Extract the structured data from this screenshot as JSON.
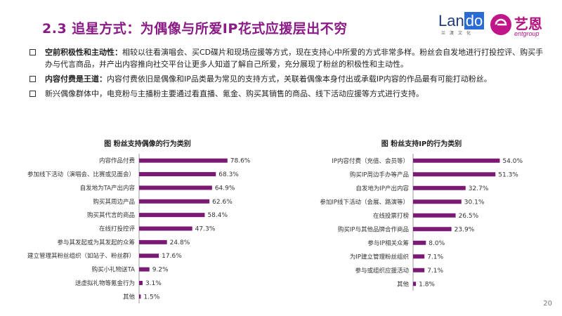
{
  "header": {
    "title": "2.3 追星方式：为偶像与所爱IP花式应援层出不穷",
    "logo_lando": {
      "text_pre": "Lan",
      "text_highlight": "do",
      "sub": "兰渡文化"
    },
    "logo_yien": {
      "cn": "艺恩",
      "en": "entgroup"
    }
  },
  "bullets": [
    {
      "bold": "空前积极性和主动性：",
      "text": "相较以往看演唱会、买CD碟片和现场应援等方式，现在支持心中所爱的方式非常多样。粉丝会自发地进行打投控评、购买手办与代言商品，并产出内容推向社交平台让更多人知道了解自己所爱，充分展现了粉丝的积极性和主动性。"
    },
    {
      "bold": "内容付费是王道：",
      "text": "内容付费依旧是偶像和IP品类最为常见的支持方式，关联着偶像本身付出或承载IP内容的作品最有可能打动粉丝。"
    },
    {
      "bold": "",
      "text": "新兴偶像群体中，电竞粉与主播粉主要通过看直播、氪金、购买其销售的商品、线下活动应援等方式进行支持。"
    }
  ],
  "chart_data": [
    {
      "type": "bar",
      "orientation": "horizontal",
      "title": "图 粉丝支持偶像的行为类别",
      "categories": [
        "内容作品付费",
        "参加线下活动（演唱会、比赛或见面会）",
        "自发地为TA产出内容",
        "购买其周边产品",
        "购买其代言的商品",
        "在线打投控评",
        "参与其发起或为其发起的众筹",
        "建立管理其粉丝组织（如站子、粉丝群）",
        "购买小礼物送TA",
        "送虚拟礼物等氪金行为",
        "其他"
      ],
      "values": [
        78.6,
        68.3,
        64.9,
        62.6,
        58.4,
        47.3,
        24.8,
        17.6,
        9.2,
        3.1,
        1.5
      ],
      "labels": [
        "78.6%",
        "68.3%",
        "64.9%",
        "62.6%",
        "58.4%",
        "47.3%",
        "24.8%",
        "17.6%",
        "9.2%",
        "3.1%",
        "1.5%"
      ],
      "xlim": [
        0,
        100
      ],
      "color": "#7b1a75"
    },
    {
      "type": "bar",
      "orientation": "horizontal",
      "title": "图 粉丝支持IP的行为类别",
      "categories": [
        "IP内容付费（充值、会员等）",
        "购买IP周边手办等产品",
        "自发地为IP产出内容",
        "参加IP线下活动（会展、路演等）",
        "在线投票打榜",
        "购买IP与其他品牌合作商品",
        "参与IP相关众筹",
        "为IP建立管理粉丝组织",
        "参与或组织应援活动",
        "其他"
      ],
      "values": [
        54.0,
        51.3,
        32.7,
        30.1,
        26.5,
        23.9,
        8.0,
        7.1,
        7.1,
        1.8
      ],
      "labels": [
        "54.0%",
        "51.3%",
        "32.7%",
        "30.1%",
        "26.5%",
        "23.9%",
        "8.0%",
        "7.1%",
        "7.1%",
        "1.8%"
      ],
      "xlim": [
        0,
        70
      ],
      "color": "#7b1a75"
    }
  ],
  "footer": {
    "page_number": "20"
  }
}
